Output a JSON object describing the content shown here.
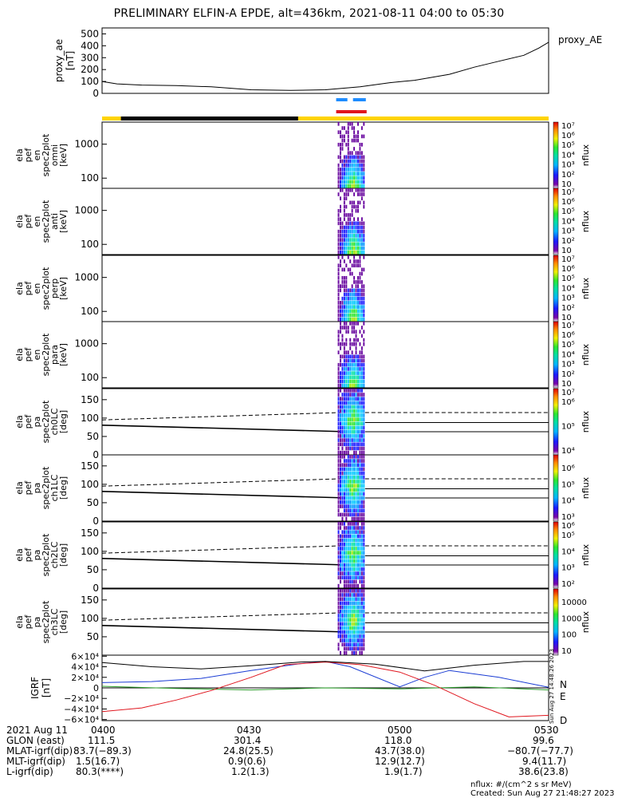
{
  "title": "PRELIMINARY ELFIN-A EPDE, alt=436km, 2021-08-11 04:00 to 05:30",
  "colors": {
    "gold": "#ffd400",
    "black": "#000000",
    "blue_bar": "#1e8cff",
    "red_bar": "#e0161e"
  },
  "proxy_ae": {
    "ylabel": [
      "proxy_ae",
      "[nT]"
    ],
    "legend": "proxy_AE",
    "yticks": [
      "0",
      "100",
      "200",
      "300",
      "400",
      "500"
    ],
    "ylim": [
      0,
      550
    ]
  },
  "spec_panels": [
    {
      "ylabel": [
        "ela",
        "pef",
        "en",
        "spec2plot",
        "omni",
        "[keV]"
      ],
      "yticks": [
        "100",
        "1000"
      ],
      "cbar_top": "10⁷",
      "cbar_ticks": [
        "10⁶",
        "10⁵",
        "10⁴",
        "10³",
        "10²",
        "10"
      ],
      "cbar_label": "nflux"
    },
    {
      "ylabel": [
        "ela",
        "pef",
        "en",
        "spec2plot",
        "anti",
        "[keV]"
      ],
      "yticks": [
        "100",
        "1000"
      ],
      "cbar_top": "10⁷",
      "cbar_ticks": [
        "10⁶",
        "10⁵",
        "10⁴",
        "10³",
        "10²",
        "10"
      ],
      "cbar_label": "nflux"
    },
    {
      "ylabel": [
        "ela",
        "pef",
        "en",
        "spec2plot",
        "perp",
        "[keV]"
      ],
      "yticks": [
        "100",
        "1000"
      ],
      "cbar_top": "10⁷",
      "cbar_ticks": [
        "10⁶",
        "10⁵",
        "10⁴",
        "10³",
        "10²",
        "10"
      ],
      "cbar_label": "nflux"
    },
    {
      "ylabel": [
        "ela",
        "pef",
        "en",
        "spec2plot",
        "para",
        "[keV]"
      ],
      "yticks": [
        "100",
        "1000"
      ],
      "cbar_top": "10⁷",
      "cbar_ticks": [
        "10⁶",
        "10⁵",
        "10⁴",
        "10³",
        "10²",
        "10"
      ],
      "cbar_label": "nflux"
    },
    {
      "ylabel": [
        "ela",
        "pef",
        "pa",
        "spec2plot",
        "ch0LC",
        "[deg]"
      ],
      "yticks": [
        "0",
        "50",
        "100",
        "150"
      ],
      "cbar_top": "10⁷",
      "cbar_ticks": [
        "10⁶",
        "10⁵",
        "10⁴"
      ],
      "cbar_label": "nflux"
    },
    {
      "ylabel": [
        "ela",
        "pef",
        "pa",
        "spec2plot",
        "ch1LC",
        "[deg]"
      ],
      "yticks": [
        "0",
        "50",
        "100",
        "150"
      ],
      "cbar_top": "",
      "cbar_ticks": [
        "10⁶",
        "10⁵",
        "10⁴",
        "10³"
      ],
      "cbar_label": "nflux"
    },
    {
      "ylabel": [
        "ela",
        "pef",
        "pa",
        "spec2plot",
        "ch2LC",
        "[deg]"
      ],
      "yticks": [
        "0",
        "50",
        "100",
        "150"
      ],
      "cbar_top": "10⁶",
      "cbar_ticks": [
        "10⁵",
        "10⁴",
        "10³",
        "10²"
      ],
      "cbar_label": "nflux"
    },
    {
      "ylabel": [
        "ela",
        "pef",
        "pa",
        "spec2plot",
        "ch3LC",
        "[deg]"
      ],
      "yticks": [
        "50",
        "100",
        "150"
      ],
      "cbar_top": "",
      "cbar_ticks": [
        "10000",
        "1000",
        "100",
        "10"
      ],
      "cbar_label": "nflux"
    }
  ],
  "igrf": {
    "ylabel": [
      "IGRF",
      "[nT]"
    ],
    "yticks": [
      "6×10⁴",
      "4×10⁴",
      "2×10⁴",
      "0",
      "−2×10⁴",
      "−4×10⁴",
      "−6×10⁴"
    ],
    "legend": [
      {
        "label": "N",
        "color": "#1a3cd4"
      },
      {
        "label": "E",
        "color": "#2ca02c"
      },
      {
        "label": "D",
        "color": "#e0161e"
      }
    ],
    "side_stamp": "Sun Aug 27 14:48:26 2023"
  },
  "chart_data": {
    "type": "line",
    "title": "PRELIMINARY ELFIN-A EPDE, alt=436km, 2021-08-11 04:00 to 05:30",
    "x_unit": "minutes after 04:00 UT",
    "xlim": [
      0,
      90
    ],
    "series": [
      {
        "name": "proxy_AE",
        "x": [
          0,
          3,
          8,
          15,
          22,
          30,
          38,
          45,
          52,
          58,
          63,
          70,
          75,
          80,
          85,
          88,
          90
        ],
        "values": [
          100,
          80,
          70,
          65,
          55,
          30,
          25,
          30,
          55,
          90,
          110,
          160,
          220,
          270,
          320,
          380,
          430
        ]
      },
      {
        "name": "IGRF N",
        "x": [
          0,
          10,
          20,
          30,
          40,
          45,
          50,
          60,
          65,
          70,
          80,
          90
        ],
        "values": [
          1.0,
          1.2,
          1.8,
          3.3,
          4.6,
          5.0,
          4.0,
          0.2,
          2.0,
          3.3,
          2.0,
          0.1
        ]
      },
      {
        "name": "IGRF E",
        "x": [
          0,
          15,
          30,
          45,
          60,
          75,
          90
        ],
        "values": [
          0.3,
          -0.1,
          -0.4,
          0.0,
          -0.2,
          0.2,
          -0.4
        ]
      },
      {
        "name": "IGRF D",
        "x": [
          0,
          8,
          15,
          22,
          30,
          37,
          45,
          52,
          60,
          67,
          75,
          82,
          90
        ],
        "values": [
          -4.5,
          -3.8,
          -2.3,
          -0.5,
          2.0,
          4.4,
          4.9,
          4.4,
          3.0,
          0.5,
          -3.0,
          -5.5,
          -5.2
        ]
      }
    ],
    "spectrogram_active_window_min": [
      47.5,
      53.0
    ]
  },
  "bottom_rows": [
    {
      "label": "2021 Aug 11",
      "values": [
        "0400",
        "0430",
        "0500",
        "0530"
      ]
    },
    {
      "label": "GLON (east)",
      "values": [
        "111.5",
        "301.4",
        "118.0",
        "99.6"
      ]
    },
    {
      "label": "MLAT-igrf(dip)",
      "values": [
        "83.7(−89.3)",
        "24.8(25.5)",
        "43.7(38.0)",
        "−80.7(−77.7)"
      ]
    },
    {
      "label": "MLT-igrf(dip)",
      "values": [
        "1.5(16.7)",
        "0.9(0.6)",
        "12.9(12.7)",
        "9.4(11.7)"
      ]
    },
    {
      "label": "L-igrf(dip)",
      "values": [
        "80.3(****)",
        "1.2(1.3)",
        "1.9(1.7)",
        "38.6(23.8)"
      ]
    }
  ],
  "footer_units": "nflux: #/(cm^2 s sr MeV)",
  "footer_created": "Created: Sun Aug 27 21:48:27 2023"
}
